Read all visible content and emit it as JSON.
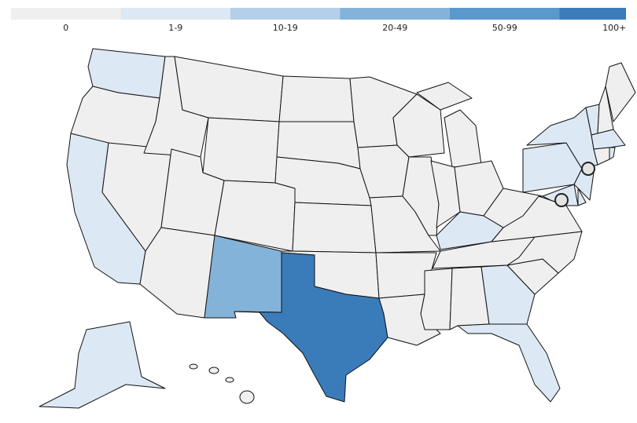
{
  "legend": [
    {
      "label": "0",
      "color": "#efefef"
    },
    {
      "label": "1-9",
      "color": "#dce8f4"
    },
    {
      "label": "10-19",
      "color": "#b4cfe8"
    },
    {
      "label": "20-49",
      "color": "#84b3d9"
    },
    {
      "label": "50-99",
      "color": "#5b98cb"
    },
    {
      "label": "100+",
      "color": "#3a7cba"
    }
  ]
}
